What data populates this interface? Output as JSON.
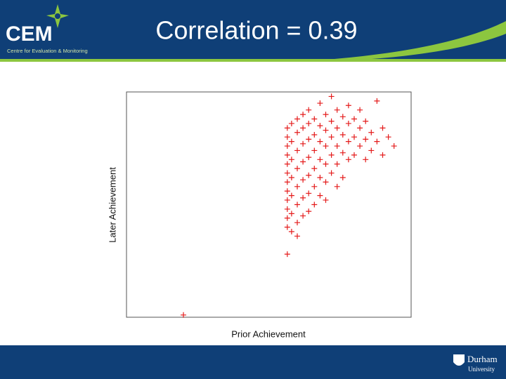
{
  "header": {
    "logo": "CEM",
    "logo_subtitle": "Centre for Evaluation & Monitoring",
    "title": "Correlation = 0.39"
  },
  "footer": {
    "university_name": "Durham",
    "university_word": "University"
  },
  "chart_data": {
    "type": "scatter",
    "xlabel": "Prior Achievement",
    "ylabel": "Later Achievement",
    "color": "#e41a1a",
    "xlim": [
      0,
      100
    ],
    "ylim": [
      0,
      100
    ],
    "x": [
      56.5,
      56.5,
      56.5,
      56.5,
      56.5,
      56.5,
      56.5,
      56.5,
      56.5,
      56.5,
      56.5,
      56.5,
      56.5,
      58,
      58,
      58,
      58,
      58,
      58,
      58,
      60,
      60,
      60,
      60,
      60,
      60,
      60,
      60,
      62,
      62,
      62,
      62,
      62,
      62,
      62,
      64,
      64,
      64,
      64,
      64,
      64,
      64,
      66,
      66,
      66,
      66,
      66,
      66,
      68,
      68,
      68,
      68,
      68,
      68,
      70,
      70,
      70,
      70,
      70,
      70,
      72,
      72,
      72,
      72,
      72,
      74,
      74,
      74,
      74,
      74,
      76,
      76,
      76,
      76,
      78,
      78,
      78,
      78,
      80,
      80,
      80,
      82,
      82,
      82,
      84,
      84,
      84,
      86,
      86,
      88,
      88,
      90,
      90,
      92,
      94,
      20
    ],
    "y": [
      84,
      80,
      76,
      72,
      68,
      64,
      60,
      56,
      52,
      48,
      44,
      40,
      28,
      86,
      78,
      70,
      62,
      54,
      46,
      38,
      88,
      82,
      74,
      66,
      58,
      50,
      42,
      36,
      90,
      84,
      77,
      69,
      61,
      53,
      45,
      92,
      86,
      79,
      71,
      63,
      55,
      47,
      88,
      81,
      74,
      66,
      58,
      50,
      95,
      85,
      78,
      70,
      62,
      54,
      90,
      83,
      76,
      68,
      60,
      52,
      98,
      87,
      80,
      72,
      64,
      92,
      84,
      76,
      68,
      58,
      89,
      81,
      73,
      62,
      94,
      86,
      78,
      70,
      88,
      80,
      72,
      92,
      84,
      76,
      87,
      79,
      70,
      82,
      74,
      96,
      78,
      84,
      72,
      80,
      76,
      1
    ]
  }
}
